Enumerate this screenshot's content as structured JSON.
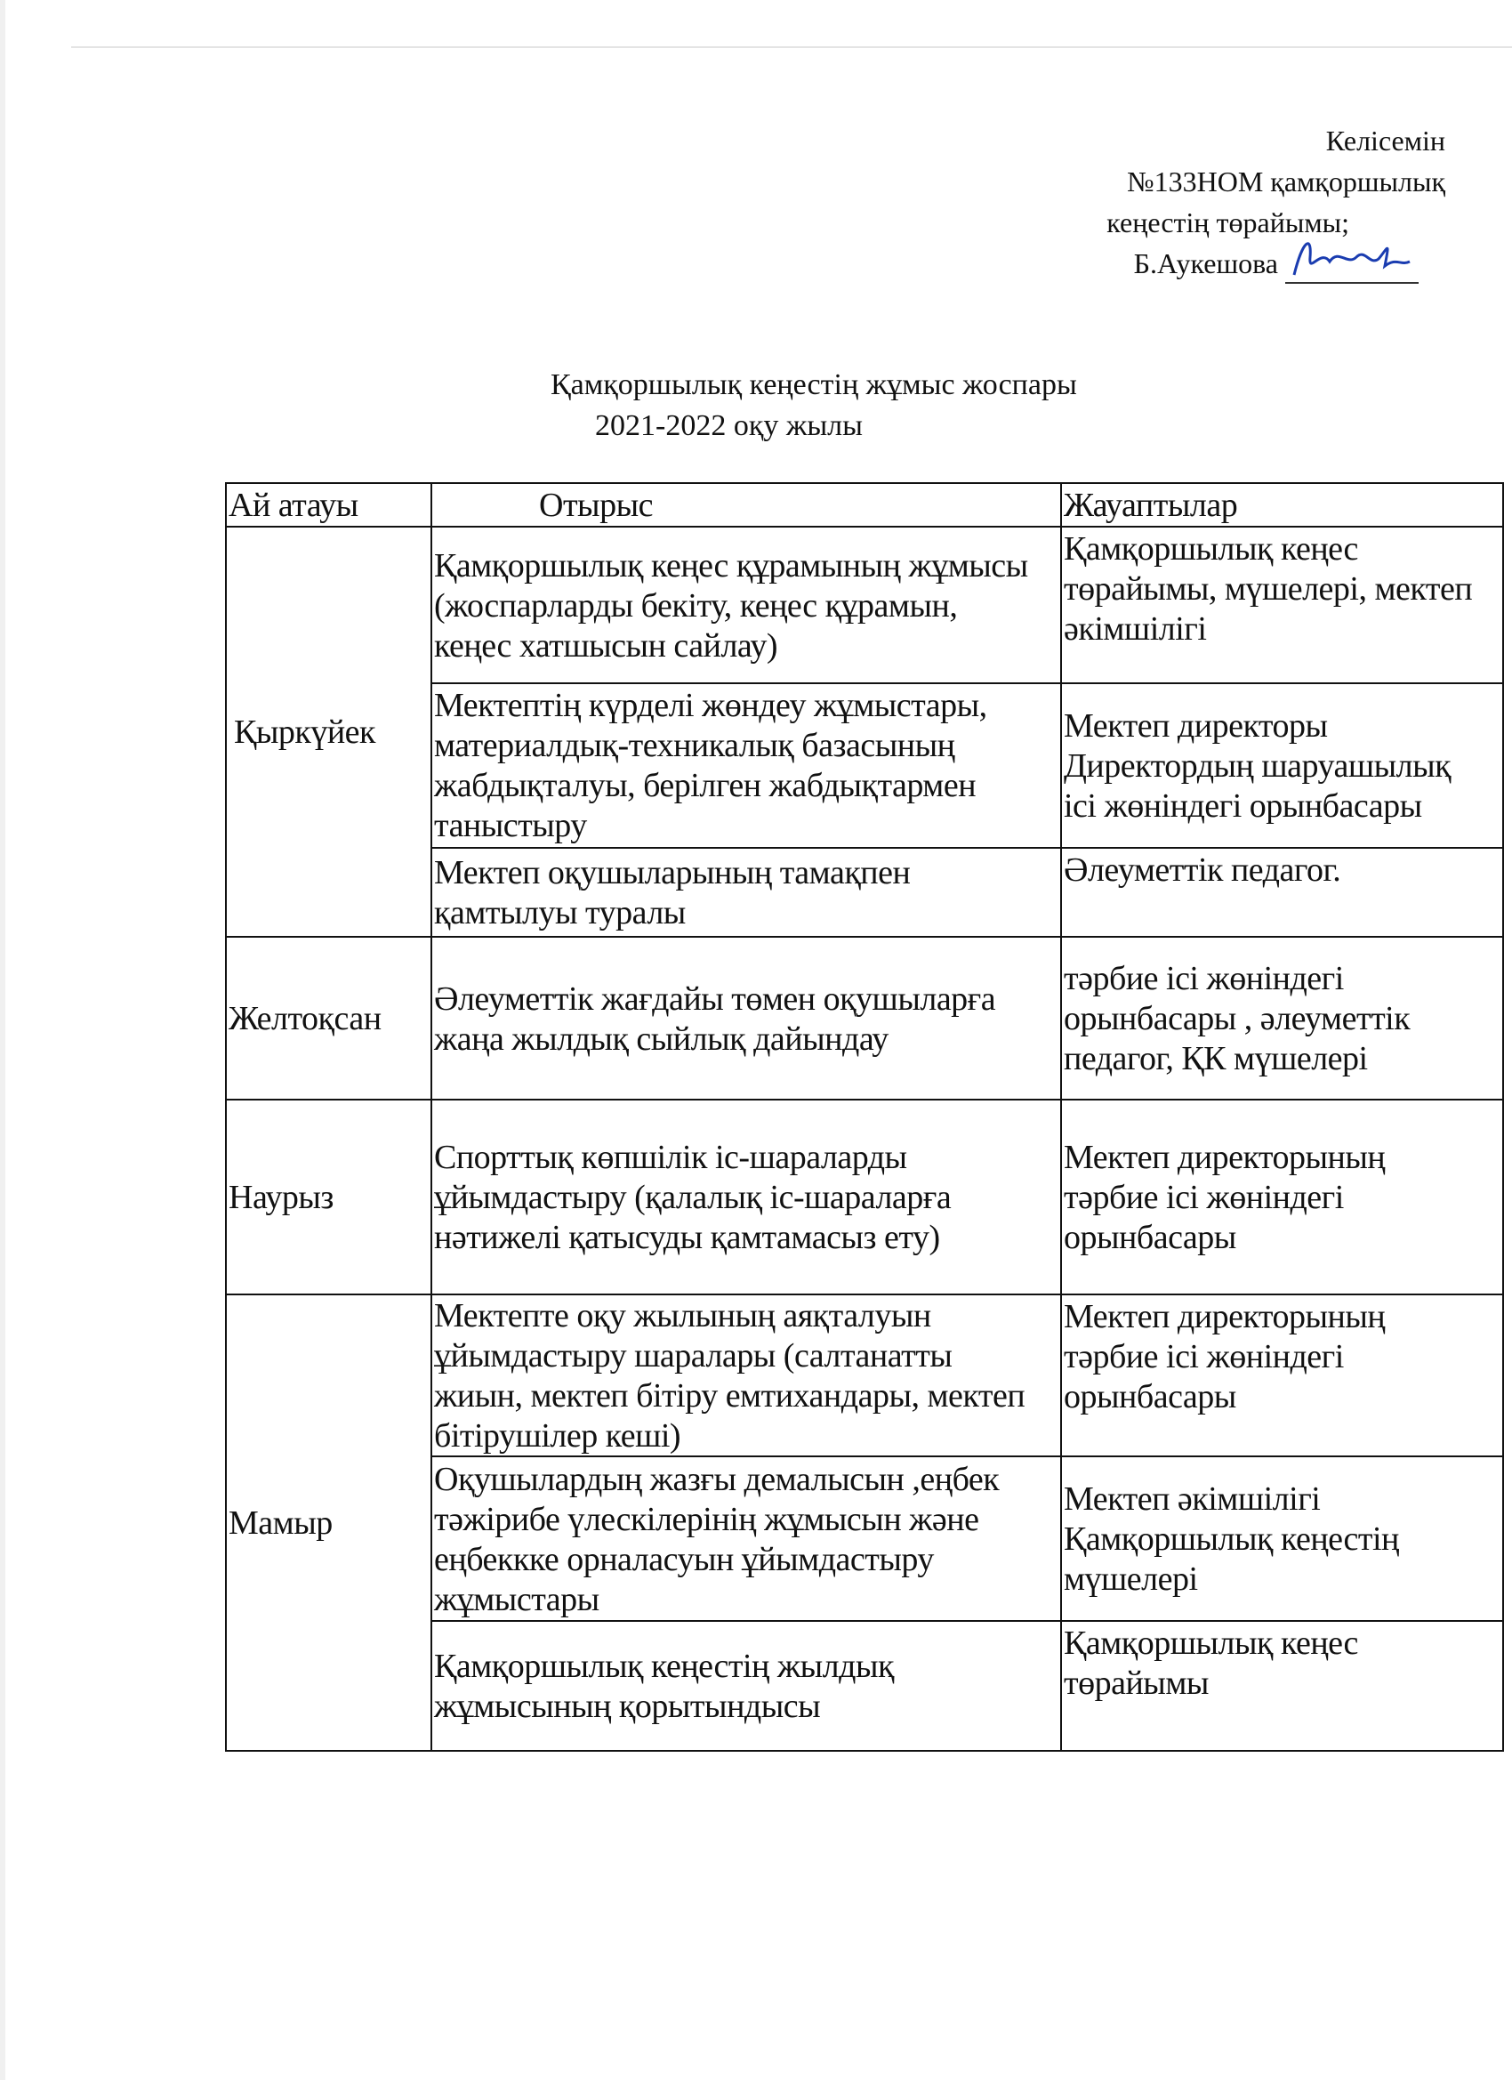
{
  "approval": {
    "line1": "Келісемін",
    "line2": "№133НОМ қамқоршылық",
    "line3": "кеңестің төрайымы;",
    "signer": "Б.Аукешова"
  },
  "title": {
    "main": "Қамқоршылық кеңестің жұмыс жоспары",
    "year": "2021-2022 оқу жылы"
  },
  "table": {
    "headers": [
      "Ай атауы",
      "Отырыс",
      "Жауаптылар"
    ],
    "months": [
      "Қыркүйек",
      "Желтоқсан",
      "Наурыз",
      "Мамыр"
    ],
    "rows": [
      {
        "meeting": [
          "Қамқоршылық кеңес құрамының жұмысы",
          "(жоспарларды бекіту, кеңес құрамын,",
          "кеңес хатшысын сайлау)"
        ],
        "responsible": [
          "Қамқоршылық кеңес",
          "төрайымы, мүшелері, мектеп",
          "әкімшілігі"
        ]
      },
      {
        "meeting": [
          "Мектептің күрделі жөндеу жұмыстары,",
          "материалдық-техникалық базасының",
          "жабдықталуы, берілген жабдықтармен",
          "таныстыру"
        ],
        "responsible": [
          "Мектеп директоры",
          "Директордың шаруашылық",
          "ісі жөніндегі орынбасары"
        ]
      },
      {
        "meeting": [
          "Мектеп оқушыларының тамақпен",
          "қамтылуы туралы"
        ],
        "responsible": [
          "Әлеуметтік педагог."
        ]
      },
      {
        "meeting": [
          "Әлеуметтік жағдайы төмен оқушыларға",
          "жаңа жылдық сыйлық дайындау"
        ],
        "responsible": [
          "тәрбие ісі жөніндегі",
          "орынбасары , әлеуметтік",
          "педагог, ҚК мүшелері"
        ]
      },
      {
        "meeting": [
          "Спорттық көпшілік іс-шараларды",
          "ұйымдастыру (қалалық іс-шараларға",
          "нәтижелі қатысуды қамтамасыз ету)"
        ],
        "responsible": [
          "Мектеп директорының",
          "тәрбие ісі жөніндегі",
          "орынбасары"
        ]
      },
      {
        "meeting": [
          "Мектепте оқу жылының аяқталуын",
          "ұйымдастыру шаралары (салтанатты",
          "жиын, мектеп бітіру емтихандары, мектеп",
          "бітірушілер кеші)"
        ],
        "responsible": [
          "Мектеп директорының",
          "тәрбие ісі жөніндегі",
          "орынбасары"
        ]
      },
      {
        "meeting": [
          "Оқушылардың жазғы демалысын ,еңбек",
          "тәжірибе үлескілерінің жұмысын және",
          "еңбеккке орналасуын ұйымдастыру",
          "жұмыстары"
        ],
        "responsible": [
          "Мектеп әкімшілігі",
          "Қамқоршылық кеңестің",
          "мүшелері"
        ]
      },
      {
        "meeting": [
          "Қамқоршылық кеңестің жылдық",
          "жұмысының қорытындысы"
        ],
        "responsible": [
          "Қамқоршылық кеңес",
          "төрайымы"
        ]
      }
    ]
  }
}
